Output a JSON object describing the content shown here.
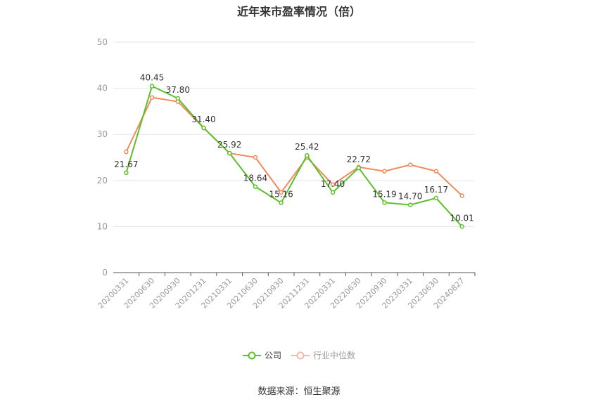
{
  "title": "近年来市盈率情况（倍）",
  "legend": {
    "company_label": "公司",
    "industry_label": "行业中位数"
  },
  "source": "数据来源：恒生聚源",
  "colors": {
    "company": "#5cc02b",
    "industry": "#f08a5d",
    "industry_legend": "#f7b8a0",
    "grid": "#e6e6ee",
    "axis": "#555555",
    "tick_text": "#999999",
    "label_text": "#333333"
  },
  "chart_data": {
    "type": "line",
    "title": "近年来市盈率情况（倍）",
    "xlabel": "",
    "ylabel": "",
    "ylim": [
      0,
      50
    ],
    "yticks": [
      0,
      10,
      20,
      30,
      40,
      50
    ],
    "grid": true,
    "legend_position": "bottom",
    "categories": [
      "20200331",
      "20200630",
      "20200930",
      "20201231",
      "20210331",
      "20210630",
      "20210930",
      "20211231",
      "20220331",
      "20220630",
      "20220930",
      "20230331",
      "20230630",
      "20240827"
    ],
    "series": [
      {
        "name": "公司",
        "values": [
          21.67,
          40.45,
          37.8,
          31.4,
          25.92,
          18.64,
          15.16,
          25.42,
          17.4,
          22.72,
          15.19,
          14.7,
          16.17,
          10.01
        ],
        "labels_shown": true
      },
      {
        "name": "行业中位数",
        "values": [
          26.2,
          38.0,
          37.1,
          31.4,
          25.9,
          25.0,
          17.4,
          25.0,
          19.1,
          22.9,
          22.0,
          23.4,
          22.0,
          16.7
        ],
        "labels_shown": false
      }
    ],
    "source": "数据来源：恒生聚源"
  }
}
